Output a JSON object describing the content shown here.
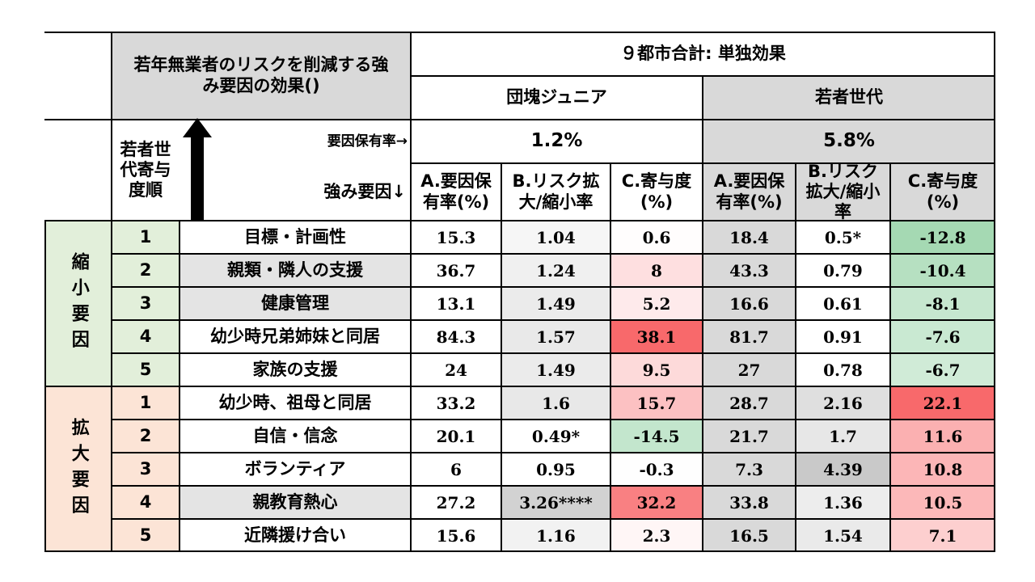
{
  "header": {
    "title": "若年無業者のリスクを削減する強み要因の効果()",
    "group_title": "９都市合計: 単独効果",
    "gen_left": "団塊ジュニア",
    "gen_right": "若者世代",
    "order_label": "若者世代寄与度順",
    "prevalence_label": "要因保有率→",
    "factor_label": "強み要因↓",
    "left_prevalence": "1.2%",
    "right_prevalence": "5.8%",
    "col_a": "A.要因保有率(%)",
    "col_b": "B.リスク拡大/縮小率",
    "col_c": "C.寄与度(%)"
  },
  "groups": [
    {
      "label": "縮小要因",
      "color": "#e2efda"
    },
    {
      "label": "拡大要因",
      "color": "#fce4d6"
    }
  ],
  "rows": [
    {
      "rank": "1",
      "factor": "目標・計画性",
      "a1": "15.3",
      "b1": "1.04",
      "c1": "0.6",
      "a2": "18.4",
      "b2": "0.5*",
      "c2": "-12.8"
    },
    {
      "rank": "2",
      "factor": "親類・隣人の支援",
      "a1": "36.7",
      "b1": "1.24",
      "c1": "8",
      "a2": "43.3",
      "b2": "0.79",
      "c2": "-10.4"
    },
    {
      "rank": "3",
      "factor": "健康管理",
      "a1": "13.1",
      "b1": "1.49",
      "c1": "5.2",
      "a2": "16.6",
      "b2": "0.61",
      "c2": "-8.1"
    },
    {
      "rank": "4",
      "factor": "幼少時兄弟姉妹と同居",
      "a1": "84.3",
      "b1": "1.57",
      "c1": "38.1",
      "a2": "81.7",
      "b2": "0.91",
      "c2": "-7.6"
    },
    {
      "rank": "5",
      "factor": "家族の支援",
      "a1": "24",
      "b1": "1.49",
      "c1": "9.5",
      "a2": "27",
      "b2": "0.78",
      "c2": "-6.7"
    },
    {
      "rank": "1",
      "factor": "幼少時、祖母と同居",
      "a1": "33.2",
      "b1": "1.6",
      "c1": "15.7",
      "a2": "28.7",
      "b2": "2.16",
      "c2": "22.1"
    },
    {
      "rank": "2",
      "factor": "自信・信念",
      "a1": "20.1",
      "b1": "0.49*",
      "c1": "-14.5",
      "a2": "21.7",
      "b2": "1.7",
      "c2": "11.6"
    },
    {
      "rank": "3",
      "factor": "ボランティア",
      "a1": "6",
      "b1": "0.95",
      "c1": "-0.3",
      "a2": "7.3",
      "b2": "4.39",
      "c2": "10.8"
    },
    {
      "rank": "4",
      "factor": "親教育熱心",
      "a1": "27.2",
      "b1": "3.26****",
      "c1": "32.2",
      "a2": "33.8",
      "b2": "1.36",
      "c2": "10.5"
    },
    {
      "rank": "5",
      "factor": "近隣援け合い",
      "a1": "15.6",
      "b1": "1.16",
      "c1": "2.3",
      "a2": "16.5",
      "b2": "1.54",
      "c2": "7.1"
    }
  ],
  "colors": {
    "header_gray": "#d9d9d9",
    "light_gray": "#efefef",
    "positive_max": "#f8696b",
    "negative_max": "#63be7b"
  }
}
